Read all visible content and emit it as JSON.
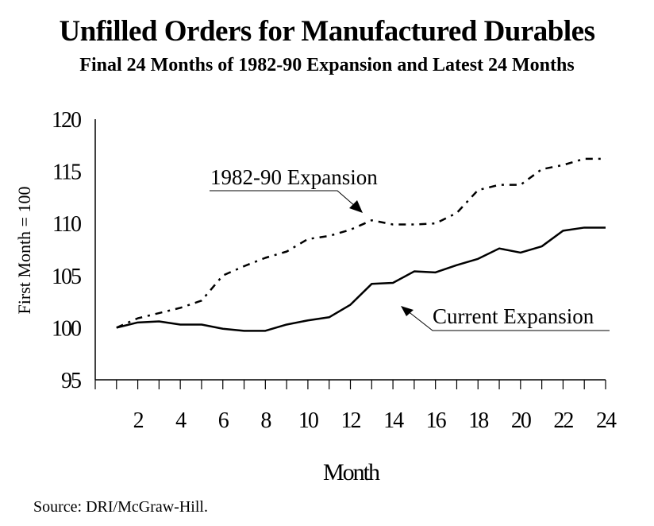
{
  "chart_data": {
    "type": "line",
    "title": "Unfilled Orders for Manufactured Durables",
    "subtitle": "Final 24 Months of 1982-90 Expansion and Latest 24 Months",
    "xlabel": "Month",
    "ylabel": "First Month = 100",
    "x": [
      1,
      2,
      3,
      4,
      5,
      6,
      7,
      8,
      9,
      10,
      11,
      12,
      13,
      14,
      15,
      16,
      17,
      18,
      19,
      20,
      21,
      22,
      23,
      24
    ],
    "xlim": [
      0,
      24
    ],
    "ylim": [
      95,
      120
    ],
    "x_tick_labels": [
      "2",
      "4",
      "6",
      "8",
      "10",
      "12",
      "14",
      "16",
      "18",
      "20",
      "22",
      "24"
    ],
    "x_tick_values": [
      2,
      4,
      6,
      8,
      10,
      12,
      14,
      16,
      18,
      20,
      22,
      24
    ],
    "y_tick_labels": [
      "95",
      "100",
      "105",
      "110",
      "115",
      "120"
    ],
    "y_tick_values": [
      95,
      100,
      105,
      110,
      115,
      120
    ],
    "grid": false,
    "legend": "none (inline annotations)",
    "series": [
      {
        "name": "1982-90 Expansion",
        "style": "dash-dot",
        "values": [
          100.0,
          100.9,
          101.4,
          101.9,
          102.6,
          105.0,
          105.9,
          106.7,
          107.3,
          108.5,
          108.8,
          109.4,
          110.3,
          109.9,
          109.9,
          110.0,
          111.0,
          113.2,
          113.7,
          113.7,
          115.2,
          115.6,
          116.2,
          116.2
        ]
      },
      {
        "name": "Current Expansion",
        "style": "solid",
        "values": [
          100.0,
          100.5,
          100.6,
          100.3,
          100.3,
          99.9,
          99.7,
          99.7,
          100.3,
          100.7,
          101.0,
          102.2,
          104.2,
          104.3,
          105.4,
          105.3,
          106.0,
          106.6,
          107.6,
          107.2,
          107.8,
          109.3,
          109.6,
          109.6
        ]
      }
    ],
    "annotations": [
      {
        "text": "1982-90 Expansion",
        "points_to_series": "1982-90 Expansion",
        "at_month": 13
      },
      {
        "text": "Current Expansion",
        "points_to_series": "Current Expansion",
        "at_month": 14
      }
    ]
  },
  "source": "Source:  DRI/McGraw-Hill."
}
